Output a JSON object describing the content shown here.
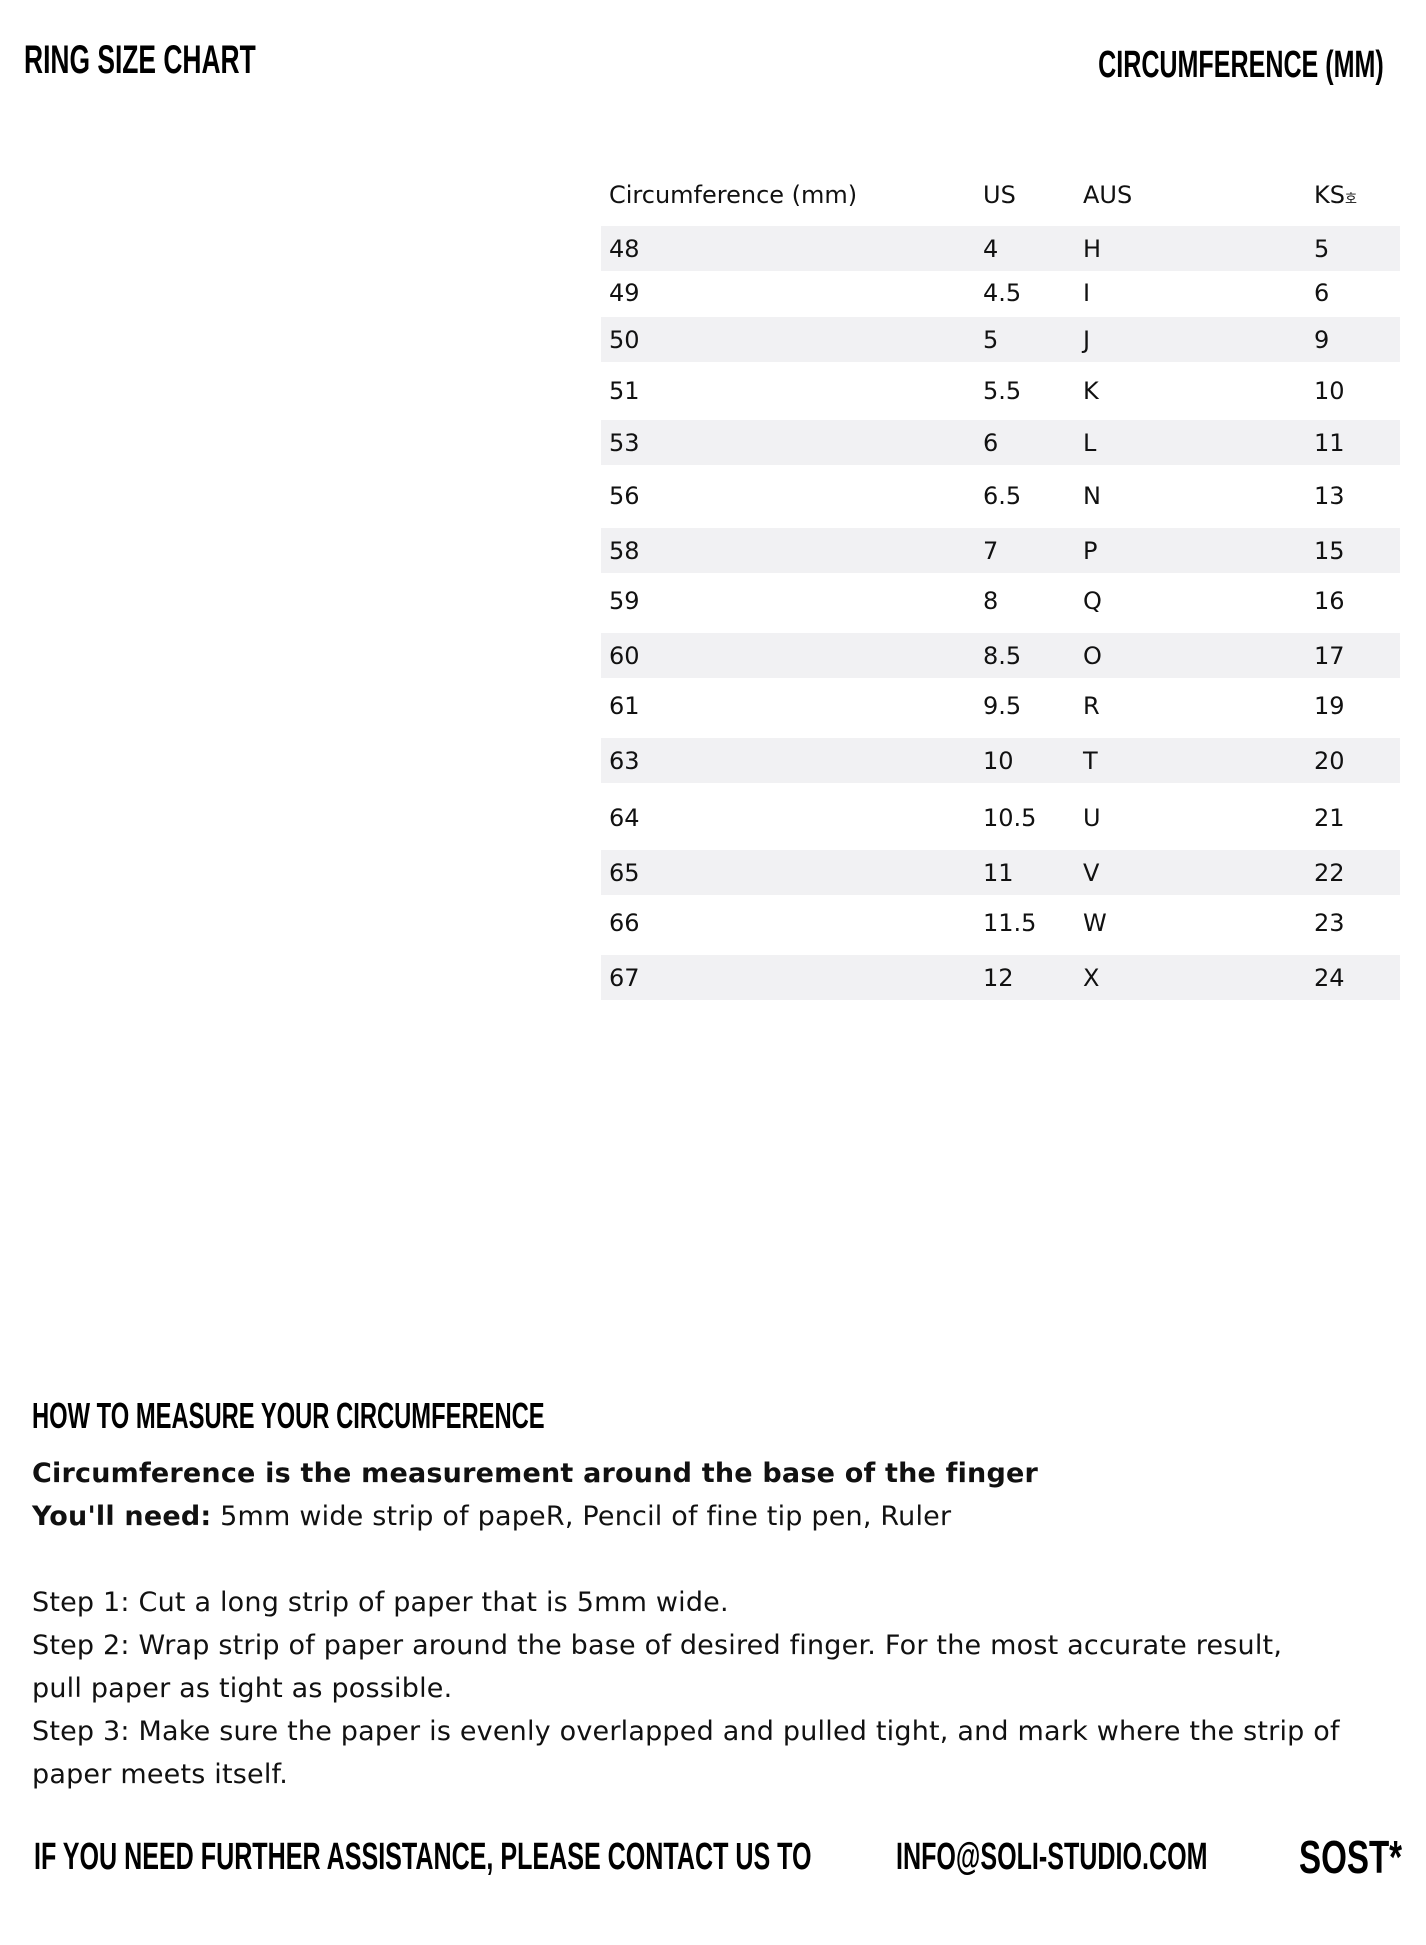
{
  "header": {
    "title": "RING SIZE CHART",
    "subtitle": "CIRCUMFERENCE (MM)"
  },
  "table": {
    "columns": [
      "Circumference (mm)",
      "US",
      "AUS",
      "KS",
      "호"
    ],
    "rows": [
      [
        "48",
        "4",
        "H",
        "5"
      ],
      [
        "49",
        "4.5",
        "I",
        "6"
      ],
      [
        "50",
        "5",
        "J",
        "9"
      ],
      [
        "51",
        "5.5",
        "K",
        "10"
      ],
      [
        "53",
        "6",
        "L",
        "11"
      ],
      [
        "56",
        "6.5",
        "N",
        "13"
      ],
      [
        "58",
        "7",
        "P",
        "15"
      ],
      [
        "59",
        "8",
        "Q",
        "16"
      ],
      [
        "60",
        "8.5",
        "O",
        "17"
      ],
      [
        "61",
        "9.5",
        "R",
        "19"
      ],
      [
        "63",
        "10",
        "T",
        "20"
      ],
      [
        "64",
        "10.5",
        "U",
        "21"
      ],
      [
        "65",
        "11",
        "V",
        "22"
      ],
      [
        "66",
        "11.5",
        "W",
        "23"
      ],
      [
        "67",
        "12",
        "X",
        "24"
      ]
    ],
    "shade_color": "#f1f1f3"
  },
  "howto": {
    "heading": "HOW TO MEASURE YOUR CIRCUMFERENCE",
    "definition": "Circumference is the measurement around the base of the finger",
    "need_label": "You'll need:",
    "need_text": " 5mm wide strip of papeR, Pencil of fine tip pen, Ruler",
    "steps": [
      "Step  1: Cut a long strip of paper that is 5mm wide.",
      "Step  2: Wrap strip of paper around the base of desired finger. For the most accurate result,",
      "pull paper as tight as possible.",
      "Step 3: Make sure the paper is evenly overlapped and pulled tight, and mark where the strip of",
      "paper meets itself."
    ]
  },
  "footer": {
    "contact": "IF YOU NEED FURTHER ASSISTANCE, PLEASE CONTACT US TO",
    "email": "INFO@SOLI-STUDIO.COM",
    "logo": "SOST*"
  }
}
